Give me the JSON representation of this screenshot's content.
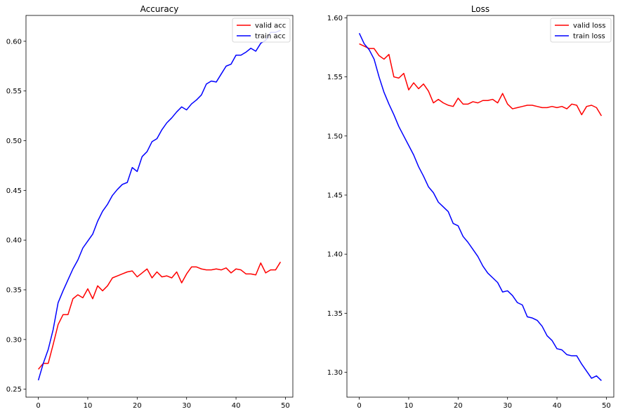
{
  "chart_data": [
    {
      "type": "line",
      "title": "Accuracy",
      "xlabel": "",
      "ylabel": "",
      "xlim": [
        -2.5,
        51.5
      ],
      "ylim": [
        0.242,
        0.626
      ],
      "xticks": [
        0,
        10,
        20,
        30,
        40,
        50
      ],
      "yticks": [
        0.25,
        0.3,
        0.35,
        0.4,
        0.45,
        0.5,
        0.55,
        0.6
      ],
      "ytick_labels": [
        "0.25",
        "0.30",
        "0.35",
        "0.40",
        "0.45",
        "0.50",
        "0.55",
        "0.60"
      ],
      "xtick_labels": [
        "0",
        "10",
        "20",
        "30",
        "40",
        "50"
      ],
      "grid": false,
      "legend_position": "top-right",
      "series": [
        {
          "name": "valid acc",
          "color": "#ff0000",
          "x": [
            0,
            1,
            2,
            3,
            4,
            5,
            6,
            7,
            8,
            9,
            10,
            11,
            12,
            13,
            14,
            15,
            16,
            17,
            18,
            19,
            20,
            21,
            22,
            23,
            24,
            25,
            26,
            27,
            28,
            29,
            30,
            31,
            32,
            33,
            34,
            35,
            36,
            37,
            38,
            39,
            40,
            41,
            42,
            43,
            44,
            45,
            46,
            47,
            48,
            49
          ],
          "values": [
            0.27,
            0.276,
            0.276,
            0.295,
            0.315,
            0.325,
            0.325,
            0.341,
            0.345,
            0.342,
            0.351,
            0.341,
            0.354,
            0.349,
            0.354,
            0.362,
            0.364,
            0.366,
            0.368,
            0.369,
            0.363,
            0.367,
            0.371,
            0.362,
            0.368,
            0.363,
            0.364,
            0.362,
            0.368,
            0.357,
            0.366,
            0.373,
            0.373,
            0.371,
            0.37,
            0.37,
            0.371,
            0.37,
            0.372,
            0.367,
            0.371,
            0.37,
            0.366,
            0.366,
            0.365,
            0.377,
            0.367,
            0.37,
            0.37,
            0.378
          ]
        },
        {
          "name": "train acc",
          "color": "#0000ff",
          "x": [
            0,
            1,
            2,
            3,
            4,
            5,
            6,
            7,
            8,
            9,
            10,
            11,
            12,
            13,
            14,
            15,
            16,
            17,
            18,
            19,
            20,
            21,
            22,
            23,
            24,
            25,
            26,
            27,
            28,
            29,
            30,
            31,
            32,
            33,
            34,
            35,
            36,
            37,
            38,
            39,
            40,
            41,
            42,
            43,
            44,
            45,
            46,
            47,
            48,
            49
          ],
          "values": [
            0.259,
            0.276,
            0.29,
            0.31,
            0.337,
            0.349,
            0.36,
            0.371,
            0.38,
            0.392,
            0.399,
            0.406,
            0.419,
            0.429,
            0.436,
            0.445,
            0.451,
            0.456,
            0.458,
            0.473,
            0.469,
            0.484,
            0.489,
            0.499,
            0.502,
            0.511,
            0.518,
            0.523,
            0.529,
            0.534,
            0.531,
            0.537,
            0.541,
            0.546,
            0.557,
            0.56,
            0.559,
            0.567,
            0.575,
            0.577,
            0.586,
            0.586,
            0.589,
            0.593,
            0.59,
            0.598,
            0.601,
            0.609,
            0.609,
            0.611
          ]
        }
      ]
    },
    {
      "type": "line",
      "title": "Loss",
      "xlabel": "",
      "ylabel": "",
      "xlim": [
        -2.5,
        51.5
      ],
      "ylim": [
        1.279,
        1.602
      ],
      "xticks": [
        0,
        10,
        20,
        30,
        40,
        50
      ],
      "yticks": [
        1.3,
        1.35,
        1.4,
        1.45,
        1.5,
        1.55,
        1.6
      ],
      "ytick_labels": [
        "1.30",
        "1.35",
        "1.40",
        "1.45",
        "1.50",
        "1.55",
        "1.60"
      ],
      "xtick_labels": [
        "0",
        "10",
        "20",
        "30",
        "40",
        "50"
      ],
      "grid": false,
      "legend_position": "top-right",
      "series": [
        {
          "name": "valid loss",
          "color": "#ff0000",
          "x": [
            0,
            1,
            2,
            3,
            4,
            5,
            6,
            7,
            8,
            9,
            10,
            11,
            12,
            13,
            14,
            15,
            16,
            17,
            18,
            19,
            20,
            21,
            22,
            23,
            24,
            25,
            26,
            27,
            28,
            29,
            30,
            31,
            32,
            33,
            34,
            35,
            36,
            37,
            38,
            39,
            40,
            41,
            42,
            43,
            44,
            45,
            46,
            47,
            48,
            49
          ],
          "values": [
            1.578,
            1.576,
            1.574,
            1.574,
            1.568,
            1.565,
            1.569,
            1.55,
            1.549,
            1.553,
            1.539,
            1.545,
            1.54,
            1.544,
            1.538,
            1.528,
            1.531,
            1.528,
            1.526,
            1.525,
            1.532,
            1.527,
            1.527,
            1.529,
            1.528,
            1.53,
            1.53,
            1.531,
            1.528,
            1.536,
            1.527,
            1.523,
            1.524,
            1.525,
            1.526,
            1.526,
            1.525,
            1.524,
            1.524,
            1.525,
            1.524,
            1.525,
            1.523,
            1.527,
            1.526,
            1.518,
            1.525,
            1.526,
            1.524,
            1.517
          ]
        },
        {
          "name": "train loss",
          "color": "#0000ff",
          "x": [
            0,
            1,
            2,
            3,
            4,
            5,
            6,
            7,
            8,
            9,
            10,
            11,
            12,
            13,
            14,
            15,
            16,
            17,
            18,
            19,
            20,
            21,
            22,
            23,
            24,
            25,
            26,
            27,
            28,
            29,
            30,
            31,
            32,
            33,
            34,
            35,
            36,
            37,
            38,
            39,
            40,
            41,
            42,
            43,
            44,
            45,
            46,
            47,
            48,
            49
          ],
          "values": [
            1.587,
            1.578,
            1.573,
            1.565,
            1.55,
            1.537,
            1.527,
            1.518,
            1.508,
            1.5,
            1.492,
            1.484,
            1.474,
            1.466,
            1.457,
            1.452,
            1.444,
            1.44,
            1.436,
            1.426,
            1.424,
            1.415,
            1.41,
            1.404,
            1.398,
            1.39,
            1.384,
            1.38,
            1.376,
            1.368,
            1.369,
            1.365,
            1.359,
            1.357,
            1.347,
            1.346,
            1.344,
            1.339,
            1.331,
            1.327,
            1.32,
            1.319,
            1.315,
            1.314,
            1.314,
            1.307,
            1.301,
            1.295,
            1.297,
            1.293
          ]
        }
      ]
    }
  ]
}
